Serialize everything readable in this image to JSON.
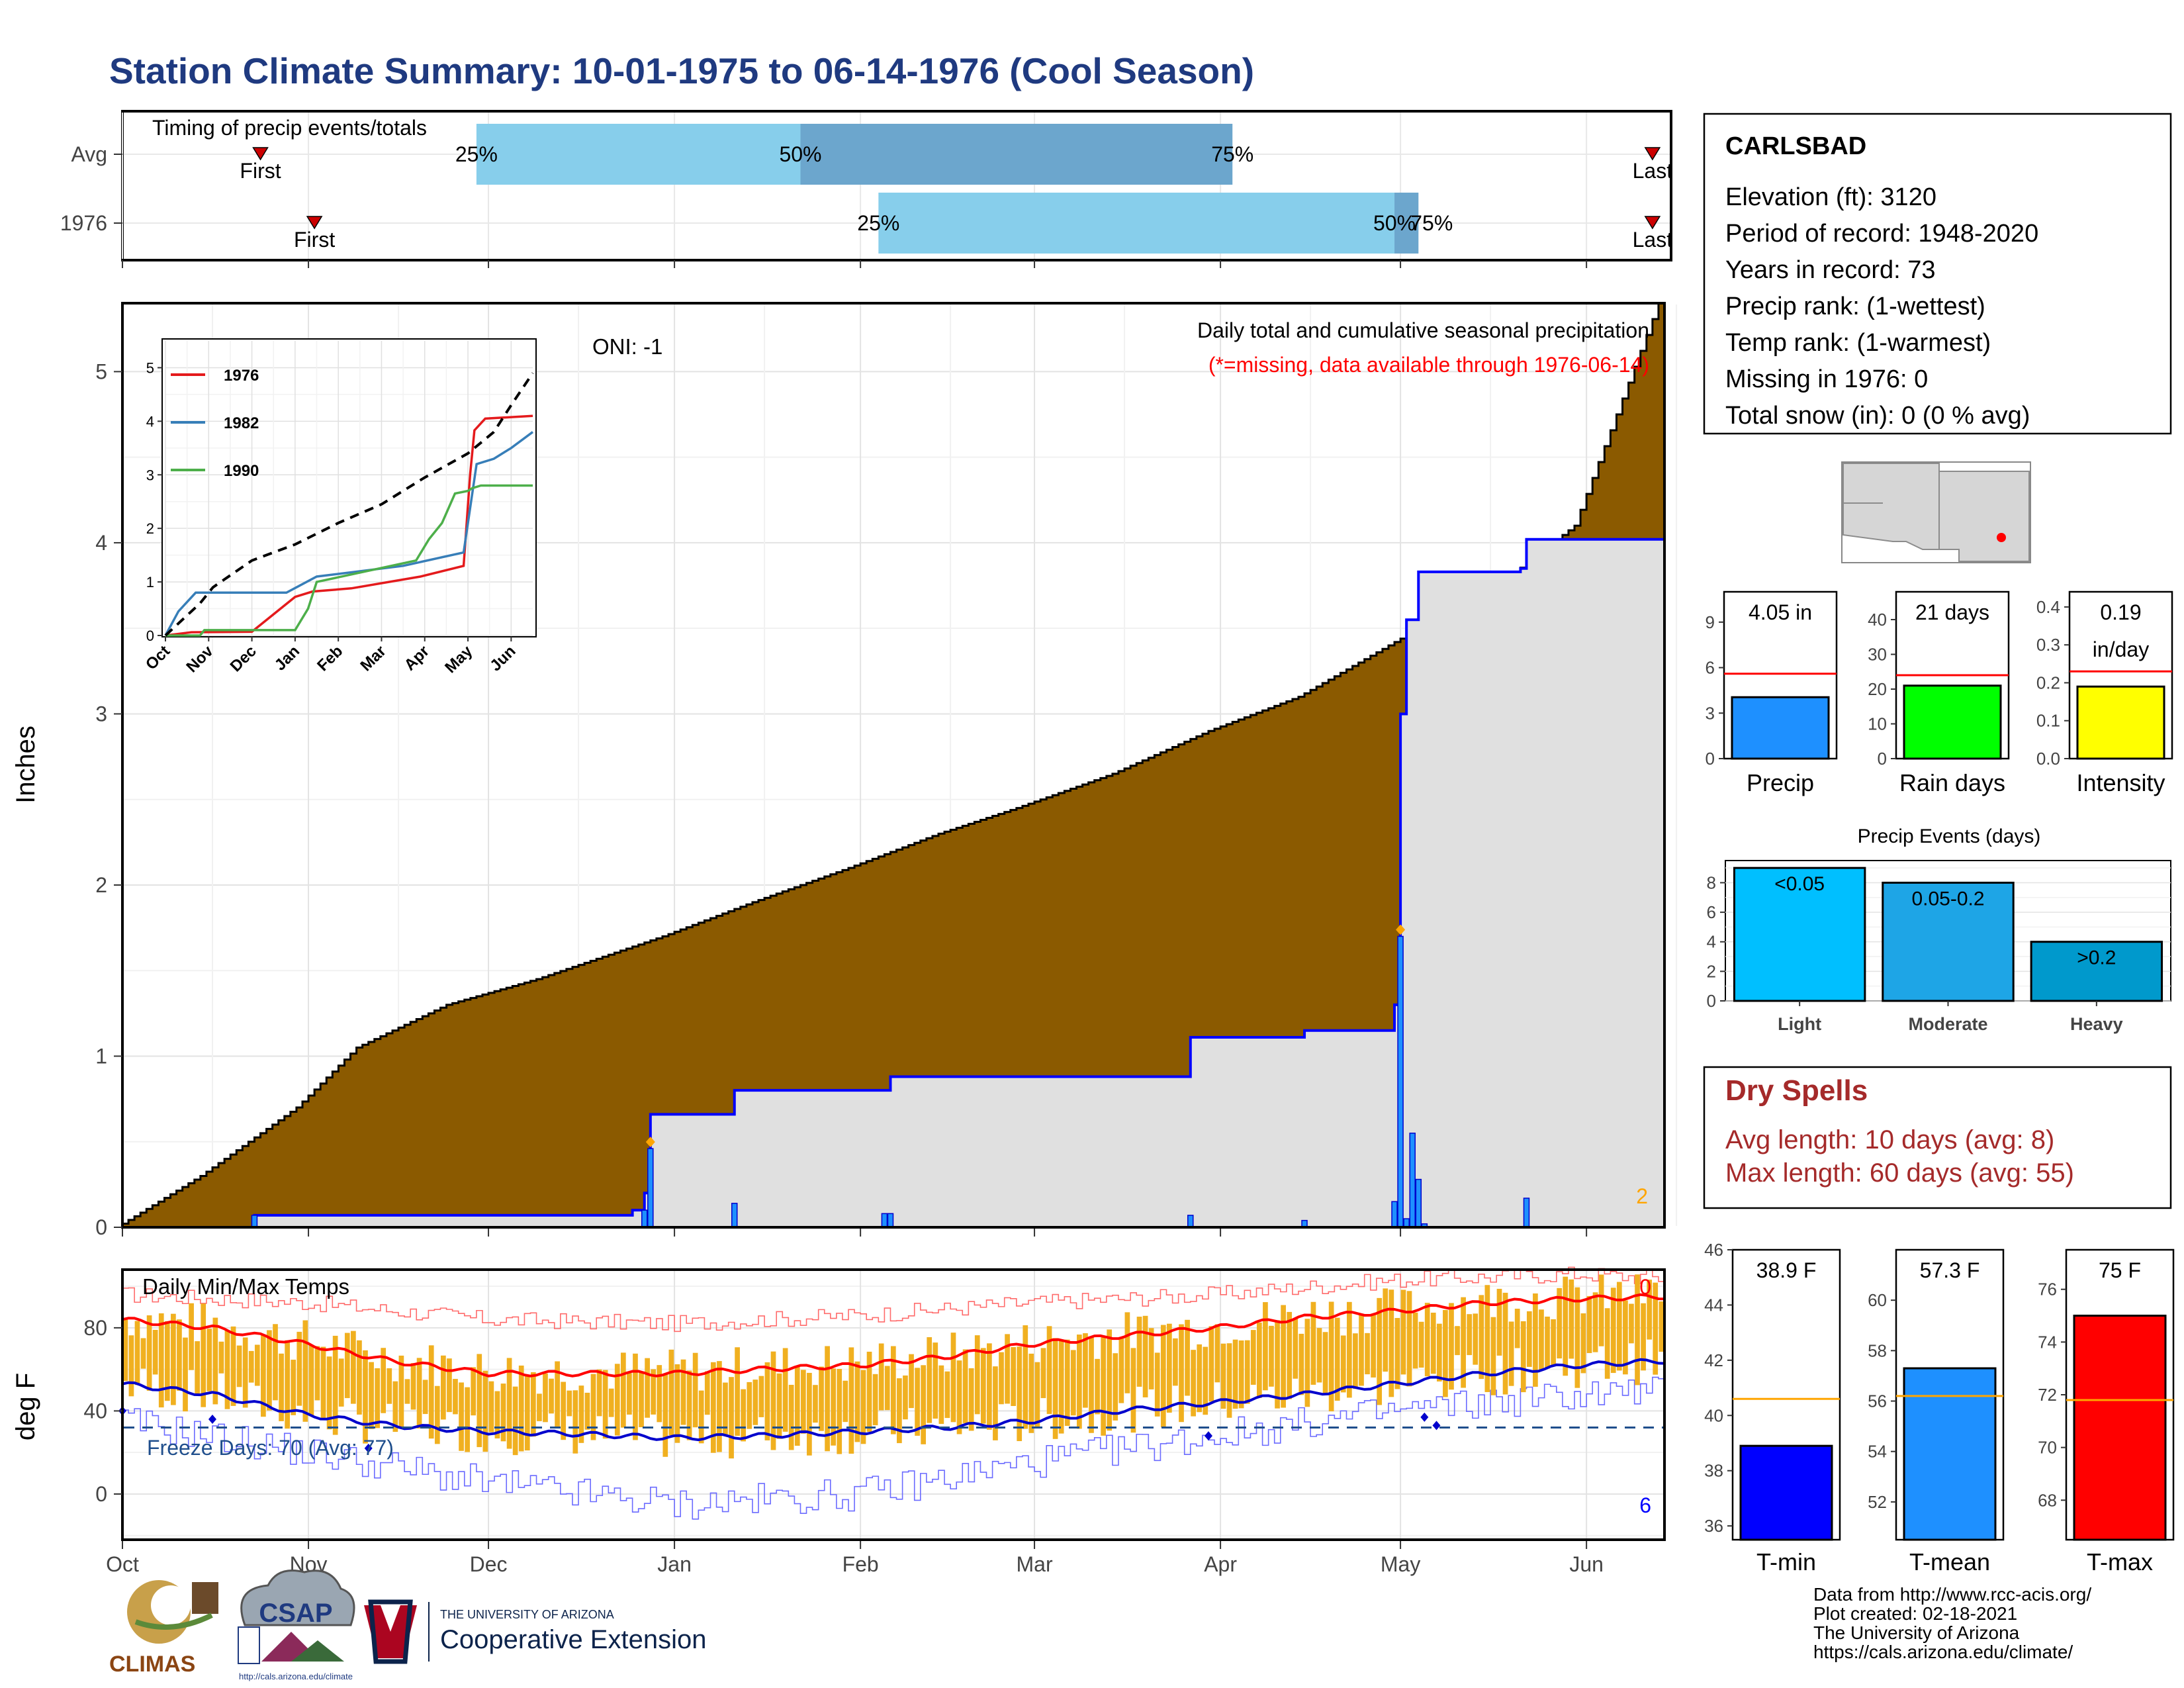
{
  "title": "Station Climate Summary: 10-01-1975 to 06-14-1976 (Cool Season)",
  "timing": {
    "title": "Timing of precip events/totals",
    "rows": [
      {
        "label": "Avg",
        "q25": "11-29",
        "q50": "01-22",
        "q75": "04-03",
        "first": "10-24",
        "last": "06-12",
        "q25_label": "25%",
        "q50_label": "50%",
        "q75_label": "75%"
      },
      {
        "label": "1976",
        "q25": "02-04",
        "q50": "04-30",
        "q75": "05-04",
        "first": "11-02",
        "last": "06-12",
        "q25_label": "25%",
        "q50_label": "50%",
        "q75_label": "75%"
      }
    ],
    "first_label": "First",
    "last_label": "Last",
    "colors": {
      "light": "#87ceeb",
      "dark": "#6ca6cd"
    }
  },
  "station": {
    "name": "CARLSBAD",
    "lines": [
      "Elevation (ft): 3120",
      "Period of record: 1948-2020",
      "Years in record: 73",
      "Precip rank:  (1-wettest)",
      "Temp rank:  (1-warmest)",
      "Missing in 1976: 0",
      "Total snow (in): 0 (0 % avg)"
    ]
  },
  "precip_panel": {
    "oni": "ONI: -1",
    "note1": "Daily total and cumulative seasonal precipitation",
    "note2": "(*=missing, data available through 1976-06-14)",
    "ylabel": "Inches",
    "corner_count": "2",
    "y_ticks": [
      "0",
      "1",
      "2",
      "3",
      "4",
      "5"
    ],
    "month_labels": [
      "Oct",
      "Nov",
      "Dec",
      "Jan",
      "Feb",
      "Mar",
      "Apr",
      "May",
      "Jun"
    ],
    "colors": {
      "avg_fill": "#8b5a00",
      "obs_fill": "#e0e0e0",
      "obs_line": "#0000ff",
      "marker": "#ffa500"
    }
  },
  "chart_data": [
    {
      "type": "area",
      "title": "Daily total and cumulative seasonal precipitation",
      "ylabel": "Inches",
      "ylim": [
        0,
        5.4
      ],
      "series": [
        {
          "name": "Avg",
          "points": [
            [
              "10-01",
              0
            ],
            [
              "10-15",
              0.3
            ],
            [
              "10-31",
              0.7
            ],
            [
              "11-10",
              1.05
            ],
            [
              "11-25",
              1.3
            ],
            [
              "12-10",
              1.45
            ],
            [
              "12-31",
              1.7
            ],
            [
              "01-15",
              1.9
            ],
            [
              "01-31",
              2.1
            ],
            [
              "02-15",
              2.3
            ],
            [
              "02-28",
              2.45
            ],
            [
              "03-15",
              2.65
            ],
            [
              "03-31",
              2.9
            ],
            [
              "04-15",
              3.1
            ],
            [
              "04-30",
              3.4
            ],
            [
              "05-10",
              3.6
            ],
            [
              "05-20",
              3.8
            ],
            [
              "05-31",
              4.1
            ],
            [
              "06-14",
              5.4
            ]
          ]
        },
        {
          "name": "1976",
          "points": [
            [
              "10-01",
              0
            ],
            [
              "10-22",
              0
            ],
            [
              "10-23",
              0.07
            ],
            [
              "12-24",
              0.07
            ],
            [
              "12-25",
              0.1
            ],
            [
              "12-27",
              0.2
            ],
            [
              "12-28",
              0.66
            ],
            [
              "01-10",
              0.66
            ],
            [
              "01-11",
              0.8
            ],
            [
              "02-05",
              0.8
            ],
            [
              "02-06",
              0.88
            ],
            [
              "03-26",
              0.88
            ],
            [
              "03-27",
              1.11
            ],
            [
              "04-14",
              1.11
            ],
            [
              "04-15",
              1.15
            ],
            [
              "04-29",
              1.15
            ],
            [
              "04-30",
              1.3
            ],
            [
              "05-01",
              3.0
            ],
            [
              "05-02",
              3.55
            ],
            [
              "05-04",
              3.83
            ],
            [
              "05-21",
              3.85
            ],
            [
              "05-22",
              4.02
            ],
            [
              "06-14",
              4.05
            ]
          ]
        }
      ],
      "daily_bars": [
        [
          "10-23",
          0.07
        ],
        [
          "12-27",
          0.1
        ],
        [
          "12-28",
          0.46
        ],
        [
          "01-11",
          0.14
        ],
        [
          "02-05",
          0.08
        ],
        [
          "02-06",
          0.08
        ],
        [
          "03-27",
          0.07
        ],
        [
          "04-15",
          0.04
        ],
        [
          "04-30",
          0.15
        ],
        [
          "05-01",
          1.7
        ],
        [
          "05-02",
          0.05
        ],
        [
          "05-03",
          0.55
        ],
        [
          "05-04",
          0.28
        ],
        [
          "05-05",
          0.02
        ],
        [
          "05-22",
          0.17
        ]
      ],
      "markers": [
        [
          "12-28",
          0.46
        ],
        [
          "05-01",
          1.7
        ]
      ]
    },
    {
      "type": "line",
      "title": "",
      "ylim": [
        0,
        5.5
      ],
      "x": [
        "Oct",
        "Nov",
        "Dec",
        "Jan",
        "Feb",
        "Mar",
        "Apr",
        "May",
        "Jun"
      ],
      "series": [
        {
          "name": "1976",
          "color": "#e41a1c",
          "points": [
            [
              0,
              0
            ],
            [
              0.6,
              0.06
            ],
            [
              2.0,
              0.07
            ],
            [
              3.0,
              0.72
            ],
            [
              3.4,
              0.82
            ],
            [
              4.3,
              0.88
            ],
            [
              5.9,
              1.1
            ],
            [
              6.9,
              1.3
            ],
            [
              7.05,
              3.0
            ],
            [
              7.15,
              3.83
            ],
            [
              7.4,
              4.05
            ],
            [
              8.5,
              4.1
            ]
          ]
        },
        {
          "name": "1982",
          "color": "#377eb8",
          "points": [
            [
              0,
              0
            ],
            [
              0.3,
              0.45
            ],
            [
              0.7,
              0.8
            ],
            [
              2.8,
              0.8
            ],
            [
              3.5,
              1.1
            ],
            [
              5.5,
              1.3
            ],
            [
              6.9,
              1.55
            ],
            [
              7.2,
              3.2
            ],
            [
              7.6,
              3.3
            ],
            [
              8.0,
              3.5
            ],
            [
              8.5,
              3.8
            ]
          ]
        },
        {
          "name": "1990",
          "color": "#4daf4a",
          "points": [
            [
              0,
              0
            ],
            [
              0.8,
              0
            ],
            [
              0.9,
              0.1
            ],
            [
              3.0,
              0.1
            ],
            [
              3.3,
              0.5
            ],
            [
              3.5,
              1.0
            ],
            [
              5.8,
              1.4
            ],
            [
              6.1,
              1.8
            ],
            [
              6.4,
              2.1
            ],
            [
              6.7,
              2.65
            ],
            [
              7.0,
              2.7
            ],
            [
              7.1,
              2.75
            ],
            [
              7.3,
              2.8
            ],
            [
              8.5,
              2.8
            ]
          ]
        },
        {
          "name": "avg",
          "color": "#000000",
          "dashed": true,
          "points": [
            [
              0,
              0
            ],
            [
              0.8,
              0.6
            ],
            [
              1.1,
              0.9
            ],
            [
              2.0,
              1.4
            ],
            [
              3.0,
              1.7
            ],
            [
              4.0,
              2.1
            ],
            [
              5.0,
              2.45
            ],
            [
              6.0,
              2.95
            ],
            [
              7.0,
              3.4
            ],
            [
              7.6,
              3.8
            ],
            [
              8.0,
              4.3
            ],
            [
              8.5,
              4.9
            ]
          ]
        }
      ],
      "y_ticks": [
        "0",
        "1",
        "2",
        "3",
        "4",
        "5"
      ]
    },
    {
      "type": "bar",
      "categories": [
        "Precip"
      ],
      "values": [
        4.05
      ],
      "avg": 5.6,
      "label": "4.05 in",
      "ylim": [
        0,
        11
      ],
      "y_ticks": [
        "0",
        "3",
        "6",
        "9"
      ],
      "color": "#1e90ff"
    },
    {
      "type": "bar",
      "categories": [
        "Rain days"
      ],
      "values": [
        21
      ],
      "avg": 24,
      "label": "21 days",
      "ylim": [
        0,
        48
      ],
      "y_ticks": [
        "0",
        "10",
        "20",
        "30",
        "40"
      ],
      "color": "#00ff00"
    },
    {
      "type": "bar",
      "categories": [
        "Intensity"
      ],
      "values": [
        0.19
      ],
      "avg": 0.23,
      "label": "0.19\nin/day",
      "label_lines": [
        "0.19",
        "in/day"
      ],
      "ylim": [
        0,
        0.44
      ],
      "y_ticks": [
        "0.0",
        "0.1",
        "0.2",
        "0.3",
        "0.4"
      ],
      "color": "#ffff00"
    },
    {
      "type": "bar",
      "title": "Precip Events (days)",
      "categories": [
        "Light",
        "Moderate",
        "Heavy"
      ],
      "values": [
        9,
        8,
        4
      ],
      "value_labels": [
        "<0.05",
        "0.05-0.2",
        ">0.2"
      ],
      "ylim": [
        0,
        9.5
      ],
      "y_ticks": [
        "0",
        "2",
        "4",
        "6",
        "8"
      ],
      "colors": [
        "#00bfff",
        "#1ea5e6",
        "#0099cc"
      ]
    },
    {
      "type": "bar",
      "title": "Daily Min/Max Temps",
      "ylabel": "deg F",
      "ylim": [
        -22,
        108
      ],
      "y_ticks": [
        "0",
        "40",
        "80"
      ],
      "freeze_line": 32,
      "freeze_label": "Freeze Days: 70 (Avg: 77)",
      "corner_top": "0",
      "corner_bottom": "6",
      "tmax_avg_points": [
        [
          0,
          84
        ],
        [
          15,
          80
        ],
        [
          31,
          72
        ],
        [
          45,
          64
        ],
        [
          61,
          58
        ],
        [
          75,
          58
        ],
        [
          92,
          58
        ],
        [
          106,
          60
        ],
        [
          123,
          62
        ],
        [
          137,
          66
        ],
        [
          151,
          72
        ],
        [
          166,
          76
        ],
        [
          182,
          80
        ],
        [
          197,
          85
        ],
        [
          212,
          88
        ],
        [
          227,
          92
        ],
        [
          243,
          94
        ],
        [
          256,
          95
        ]
      ],
      "tmin_avg_points": [
        [
          0,
          53
        ],
        [
          15,
          48
        ],
        [
          31,
          38
        ],
        [
          45,
          33
        ],
        [
          61,
          30
        ],
        [
          75,
          29
        ],
        [
          92,
          27
        ],
        [
          106,
          28
        ],
        [
          123,
          30
        ],
        [
          137,
          32
        ],
        [
          151,
          35
        ],
        [
          166,
          40
        ],
        [
          182,
          44
        ],
        [
          197,
          48
        ],
        [
          212,
          53
        ],
        [
          227,
          58
        ],
        [
          243,
          62
        ],
        [
          256,
          64
        ]
      ],
      "record_high_points": [
        [
          0,
          96
        ],
        [
          31,
          92
        ],
        [
          61,
          84
        ],
        [
          92,
          82
        ],
        [
          123,
          86
        ],
        [
          151,
          92
        ],
        [
          182,
          96
        ],
        [
          212,
          103
        ],
        [
          243,
          106
        ],
        [
          256,
          104
        ]
      ],
      "record_low_points": [
        [
          0,
          35
        ],
        [
          31,
          20
        ],
        [
          61,
          5
        ],
        [
          92,
          -5
        ],
        [
          123,
          0
        ],
        [
          151,
          15
        ],
        [
          182,
          28
        ],
        [
          212,
          40
        ],
        [
          243,
          48
        ],
        [
          256,
          50
        ]
      ],
      "freeze_markers": [
        [
          0,
          40
        ],
        [
          15,
          36
        ],
        [
          41,
          22
        ],
        [
          181,
          28
        ],
        [
          217,
          37
        ],
        [
          219,
          33
        ]
      ]
    },
    {
      "type": "bar",
      "categories": [
        "T-min"
      ],
      "values": [
        38.9
      ],
      "avg": 40.6,
      "label": "38.9 F",
      "ylim": [
        35.5,
        46
      ],
      "y_ticks": [
        "36",
        "38",
        "40",
        "42",
        "44",
        "46"
      ],
      "color": "#0000ff"
    },
    {
      "type": "bar",
      "categories": [
        "T-mean"
      ],
      "values": [
        57.3
      ],
      "avg": 56.2,
      "label": "57.3 F",
      "ylim": [
        50.5,
        62
      ],
      "y_ticks": [
        "52",
        "54",
        "56",
        "58",
        "60"
      ],
      "color": "#1e90ff"
    },
    {
      "type": "bar",
      "categories": [
        "T-max"
      ],
      "values": [
        75
      ],
      "avg": 71.8,
      "label": "75 F",
      "ylim": [
        66.5,
        77.5
      ],
      "y_ticks": [
        "68",
        "70",
        "72",
        "74",
        "76"
      ],
      "color": "#ff0000"
    }
  ],
  "dry_spells": {
    "title": "Dry Spells",
    "line1": "Avg length: 10 days (avg: 8)",
    "line2": "Max length: 60 days (avg: 55)"
  },
  "credits": {
    "line1": "Data from http://www.rcc-acis.org/",
    "line2": "Plot created: 02-18-2021",
    "line3": "The University of Arizona",
    "line4": "https://cals.arizona.edu/climate/"
  },
  "logos": {
    "climas": "CLIMAS",
    "csap": "CSAP",
    "csap_url": "http://cals.arizona.edu/climate",
    "ua_small": "THE UNIVERSITY OF ARIZONA",
    "ua_big": "Cooperative Extension"
  }
}
